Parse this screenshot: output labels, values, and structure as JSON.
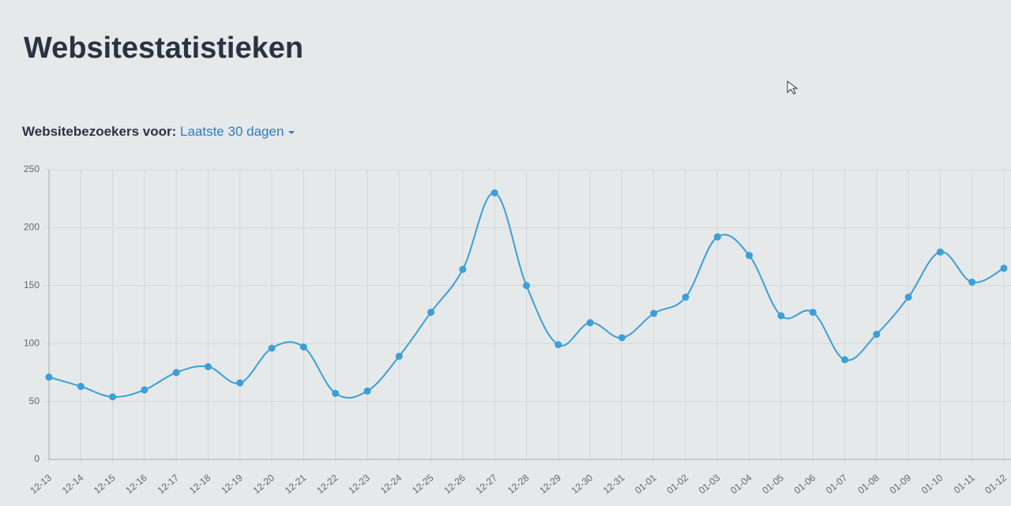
{
  "header": {
    "title": "Websitestatistieken"
  },
  "filter": {
    "label": "Websitebezoekers voor:",
    "value": "Laatste 30 dagen"
  },
  "chart_data": {
    "type": "line",
    "categories": [
      "12-13",
      "12-14",
      "12-15",
      "12-16",
      "12-17",
      "12-18",
      "12-19",
      "12-20",
      "12-21",
      "12-22",
      "12-23",
      "12-24",
      "12-25",
      "12-26",
      "12-27",
      "12-28",
      "12-29",
      "12-30",
      "12-31",
      "01-01",
      "01-02",
      "01-03",
      "01-04",
      "01-05",
      "01-06",
      "01-07",
      "01-08",
      "01-09",
      "01-10",
      "01-11",
      "01-12"
    ],
    "values": [
      71,
      63,
      54,
      60,
      75,
      80,
      66,
      96,
      97,
      57,
      59,
      89,
      127,
      164,
      230,
      150,
      99,
      118,
      105,
      126,
      140,
      192,
      176,
      124,
      127,
      86,
      108,
      140,
      179,
      153,
      165
    ],
    "color": "#3b9fd8",
    "ylim": [
      0,
      250
    ],
    "yticks": [
      0,
      50,
      100,
      150,
      200,
      250
    ],
    "grid": true
  }
}
